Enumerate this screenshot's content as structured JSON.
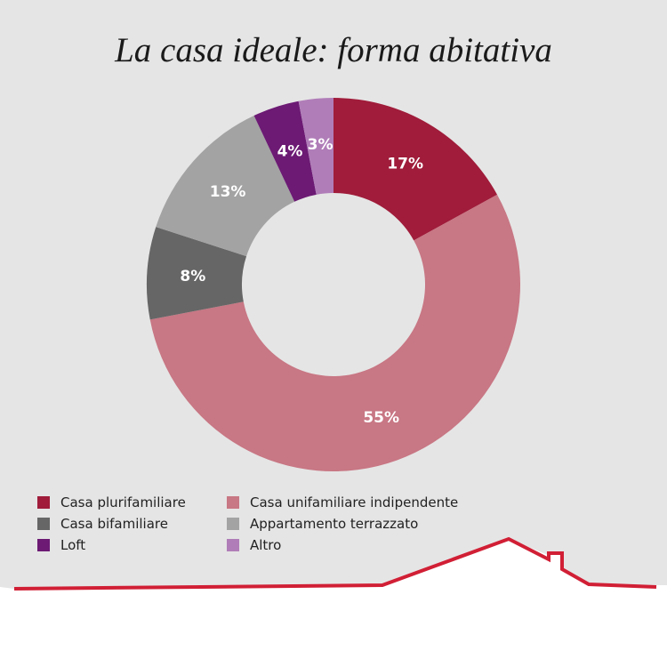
{
  "title": "La casa ideale: forma abitativa",
  "colors": {
    "background": "#e5e5e5",
    "roof": "#d11f35"
  },
  "chart_data": {
    "type": "pie",
    "donut": true,
    "title": "La casa ideale: forma abitativa",
    "slices": [
      {
        "name": "Casa plurifamiliare",
        "value": 17,
        "label": "17%",
        "color": "#a01c3a"
      },
      {
        "name": "Casa unifamiliare indipendente",
        "value": 55,
        "label": "55%",
        "color": "#c87784"
      },
      {
        "name": "Casa bifamiliare",
        "value": 8,
        "label": "8%",
        "color": "#666666"
      },
      {
        "name": "Appartamento terrazzato",
        "value": 13,
        "label": "13%",
        "color": "#a3a3a3"
      },
      {
        "name": "Loft",
        "value": 4,
        "label": "4%",
        "color": "#6c1a74"
      },
      {
        "name": "Altro",
        "value": 3,
        "label": "3%",
        "color": "#b07db8"
      }
    ],
    "legend_order": [
      0,
      1,
      2,
      3,
      4,
      5
    ],
    "legend_placement": "bottom"
  }
}
